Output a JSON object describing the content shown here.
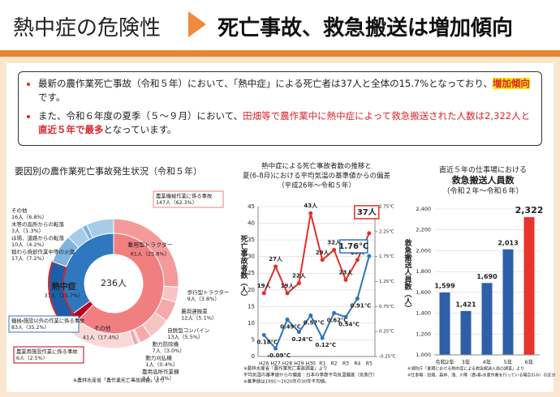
{
  "header": {
    "title": "熱中症の危険性",
    "headline": "死亡事故、救急搬送は増加傾向"
  },
  "bullets": [
    [
      "最新の農作業死亡事故（令和５年）において、「熱中症」による死亡者は37人と全体の15.7%となっており、",
      "増加傾向",
      "です。"
    ],
    [
      "また、令和６年度の夏季（５～９月）において、",
      "田畑等で農作業中に熱中症によって救急搬送された人数は2,322人と",
      "直近５年で最多",
      "となっています。"
    ]
  ],
  "chart_data": [
    {
      "type": "pie",
      "title": "要因別の農作業死亡事故発生状況（令和５年）",
      "center_label": "236人",
      "groups": [
        {
          "name": "農業機械作業に係る事故",
          "value": 147,
          "value_label": "147人（62.3%）",
          "color": "#f27f80",
          "segments": [
            {
              "name": "乗用型トラクター",
              "value": 61,
              "value_label": "61人（25.8%）",
              "color": "#f49a9b"
            },
            {
              "name": "歩行型トラクター",
              "value": 9,
              "value_label": "9人（3.8%）",
              "color": "#f8c3c3"
            },
            {
              "name": "農用運搬車",
              "value": 12,
              "value_label": "12人（5.1%）",
              "color": "#f5a9aa"
            },
            {
              "name": "自脱型コンバイン",
              "value": 13,
              "value_label": "13人（5.5%）",
              "color": "#f8c3c3"
            },
            {
              "name": "動力防除機",
              "value": 7,
              "value_label": "7人（3.0%）",
              "color": "#f5a9aa"
            },
            {
              "name": "動力刈払機",
              "value": 1,
              "value_label": "1人（0.4%）",
              "color": "#f8c3c3"
            },
            {
              "name": "農用高所作業機",
              "value": 3,
              "value_label": "3人（1.3%）",
              "color": "#f5a9aa"
            },
            {
              "name": "その他",
              "value": 41,
              "value_label": "41人（17.4%）",
              "color": "#fbd8d8"
            }
          ]
        },
        {
          "name": "農業用施設作業に係る事故",
          "value": 6,
          "value_label": "6人（2.5%）",
          "color": "#b80020",
          "segments": []
        },
        {
          "name": "機械・施設以外の作業に係る事故",
          "value": 83,
          "value_label": "83人（35.2%）",
          "color": "#2f78c0",
          "segments": [
            {
              "name": "熱中症",
              "value": 37,
              "value_label": "37人（15.7%）",
              "color": "#1d5ea8",
              "border": "#d9262e"
            },
            {
              "name": "稲わら焼却作業中等の火傷",
              "value": 17,
              "value_label": "17人（7.2%）",
              "color": "#7fb3de"
            },
            {
              "name": "ほ場、道路からの転落",
              "value": 10,
              "value_label": "10人（4.2%）",
              "color": "#a8cbe9"
            },
            {
              "name": "木等の高所からの転落",
              "value": 3,
              "value_label": "3人（1.3%）",
              "color": "#7fb3de"
            },
            {
              "name": "その他",
              "value": 16,
              "value_label": "16人（6.8%）",
              "color": "#a8cbe9"
            }
          ]
        }
      ],
      "note": "※農林水産省「農作業死亡事故調査」より"
    },
    {
      "type": "line",
      "title_lines": [
        "熱中症による死亡事故者数の推移と",
        "夏(6-8月)における平均気温の基準値からの偏差",
        "（平成26年～令和５年）"
      ],
      "categories": [
        "H26",
        "H27",
        "H28",
        "H29",
        "H30",
        "R1",
        "R2",
        "R3",
        "R4",
        "R5"
      ],
      "y_label": "死亡事故者数（人）",
      "series": [
        {
          "name": "死亡事故者数",
          "color": "#e0302b",
          "axis": "y",
          "values": [
            19,
            27,
            19,
            22,
            43,
            29,
            32,
            23,
            29,
            37
          ],
          "value_labels": [
            "19人",
            "27人",
            "19人",
            "22人",
            "43人",
            "29人",
            "32人",
            "23人",
            "29人",
            "37人"
          ]
        },
        {
          "name": "平均気温の基準値からの偏差",
          "color": "#2e75b6",
          "axis": "y2",
          "values": [
            0.18,
            -0.09,
            0.49,
            0.24,
            0.57,
            0.12,
            0.62,
            0.54,
            0.91,
            1.76
          ],
          "value_labels": [
            "0.18℃",
            "-0.09℃",
            "0.49℃",
            "0.24℃",
            "0.57℃",
            "0.12℃",
            "0.62℃",
            "0.54℃",
            "0.91℃",
            "1.76℃"
          ]
        }
      ],
      "ylim": [
        0,
        45
      ],
      "yticks": [
        0,
        5,
        10,
        15,
        20,
        25,
        30,
        35,
        40,
        45
      ],
      "y2lim": [
        -0.25,
        2.75
      ],
      "y2ticks": [
        {
          "value": -0.25,
          "label": "-0.25℃"
        },
        {
          "value": 0.25,
          "label": "0.25℃"
        },
        {
          "value": 0.75,
          "label": "0.75℃"
        },
        {
          "value": 1.25,
          "label": "1.25℃"
        },
        {
          "value": 1.75,
          "label": "1.75℃"
        },
        {
          "value": 2.25,
          "label": "2.25℃"
        },
        {
          "value": 2.75,
          "label": "2.75℃"
        }
      ],
      "grid": true,
      "notes": [
        "※農林水産省「農作業死亡事故調査」より",
        "平均気温の基準値からの偏差：日本の季節平均気温偏差（気象庁）",
        "※基準値は1991〜2020年の30年平均値。"
      ]
    },
    {
      "type": "bar",
      "title_lines": [
        "直近５年の仕事場における",
        "救急搬送人員数",
        "（令和２年～令和６年）"
      ],
      "categories": [
        "令和2年",
        "3年",
        "4年",
        "5年",
        "6年"
      ],
      "values": [
        1599,
        1421,
        1690,
        2013,
        2322
      ],
      "value_labels": [
        "1,599",
        "1,421",
        "1,690",
        "2,013",
        "2,322"
      ],
      "colors": [
        "#2e5fa8",
        "#2e5fa8",
        "#2e5fa8",
        "#2e5fa8",
        "#e8352b"
      ],
      "y_label": "救急搬送人員数（人）",
      "ylim": [
        1000,
        2400
      ],
      "yticks": [
        {
          "value": 1000,
          "label": "1,000"
        },
        {
          "value": 1200,
          "label": "1,200"
        },
        {
          "value": 1400,
          "label": "1,400"
        },
        {
          "value": 1600,
          "label": "1,600"
        },
        {
          "value": 1800,
          "label": "1,800"
        },
        {
          "value": 2000,
          "label": "2,000"
        },
        {
          "value": 2200,
          "label": "2,200"
        },
        {
          "value": 2400,
          "label": "2,400"
        }
      ],
      "grid": true,
      "notes": [
        "※消防庁「夏期における熱中症による救急搬送人員の調査」より",
        "※仕事場：田畑、森林、海、川等（農・畜・水産作業を行っている場合のみ）の区分"
      ]
    }
  ]
}
